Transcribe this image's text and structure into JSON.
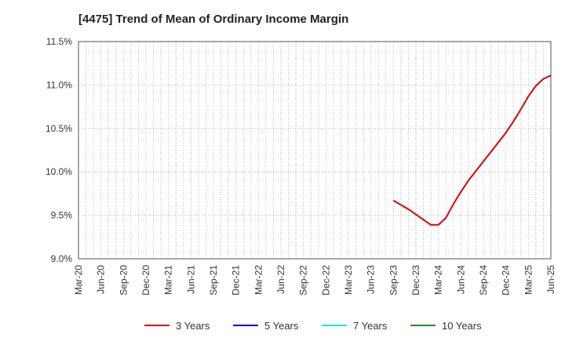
{
  "chart_data": {
    "type": "line",
    "title": "[4475]  Trend of Mean of Ordinary Income Margin",
    "xlabel": "",
    "ylabel": "",
    "ylim": [
      9.0,
      11.5
    ],
    "y_ticks": [
      9.0,
      9.5,
      10.0,
      10.5,
      11.0,
      11.5
    ],
    "y_tick_labels": [
      "9.0%",
      "9.5%",
      "10.0%",
      "10.5%",
      "11.0%",
      "11.5%"
    ],
    "x_ticks": [
      "Mar-20",
      "Jun-20",
      "Sep-20",
      "Dec-20",
      "Mar-21",
      "Jun-21",
      "Sep-21",
      "Dec-21",
      "Mar-22",
      "Jun-22",
      "Sep-22",
      "Dec-22",
      "Mar-23",
      "Jun-23",
      "Sep-23",
      "Dec-23",
      "Mar-24",
      "Jun-24",
      "Sep-24",
      "Dec-24",
      "Mar-25",
      "Jun-25"
    ],
    "x_range_months": [
      0,
      63
    ],
    "grid": true,
    "legend_position": "bottom",
    "series": [
      {
        "name": "3 Years",
        "color": "#dd0000",
        "points": [
          {
            "month": 42,
            "value": 9.67
          },
          {
            "month": 43,
            "value": 9.62
          },
          {
            "month": 44,
            "value": 9.57
          },
          {
            "month": 45,
            "value": 9.51
          },
          {
            "month": 46,
            "value": 9.45
          },
          {
            "month": 47,
            "value": 9.39
          },
          {
            "month": 48,
            "value": 9.39
          },
          {
            "month": 49,
            "value": 9.47
          },
          {
            "month": 50,
            "value": 9.63
          },
          {
            "month": 51,
            "value": 9.77
          },
          {
            "month": 52,
            "value": 9.9
          },
          {
            "month": 53,
            "value": 10.01
          },
          {
            "month": 54,
            "value": 10.12
          },
          {
            "month": 55,
            "value": 10.23
          },
          {
            "month": 56,
            "value": 10.34
          },
          {
            "month": 57,
            "value": 10.45
          },
          {
            "month": 58,
            "value": 10.58
          },
          {
            "month": 59,
            "value": 10.72
          },
          {
            "month": 60,
            "value": 10.87
          },
          {
            "month": 61,
            "value": 10.99
          },
          {
            "month": 62,
            "value": 11.07
          },
          {
            "month": 63,
            "value": 11.11
          }
        ]
      },
      {
        "name": "5 Years",
        "color": "#0000cc",
        "points": []
      },
      {
        "name": "7 Years",
        "color": "#00e5ee",
        "points": []
      },
      {
        "name": "10 Years",
        "color": "#228b22",
        "points": []
      }
    ]
  }
}
